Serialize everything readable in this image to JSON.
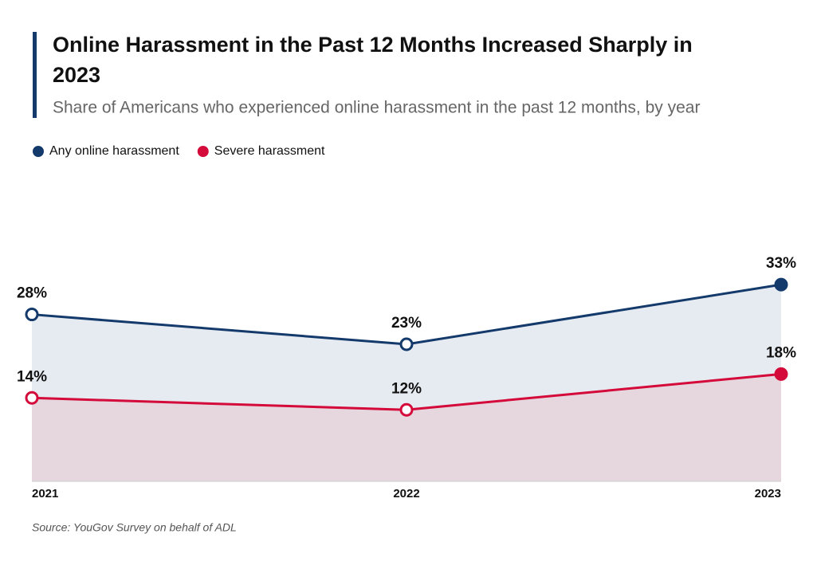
{
  "chart_data": {
    "type": "line",
    "title": "Online Harassment in the Past 12 Months Increased Sharply in 2023",
    "subtitle": "Share of Americans who experienced online harassment in the past 12 months, by year",
    "categories": [
      "2021",
      "2022",
      "2023"
    ],
    "series": [
      {
        "name": "Any online harassment",
        "color": "#143a6c",
        "area_color": "#e6eaf1",
        "values": [
          28,
          23,
          33
        ],
        "value_labels": [
          "28%",
          "23%",
          "33%"
        ]
      },
      {
        "name": "Severe harassment",
        "color": "#d40a3a",
        "area_color": "#e6d6de",
        "values": [
          14,
          12,
          18
        ],
        "value_labels": [
          "14%",
          "12%",
          "18%"
        ]
      }
    ],
    "ylim": [
      0,
      50
    ],
    "source": "Source: YouGov Survey on behalf of ADL"
  }
}
